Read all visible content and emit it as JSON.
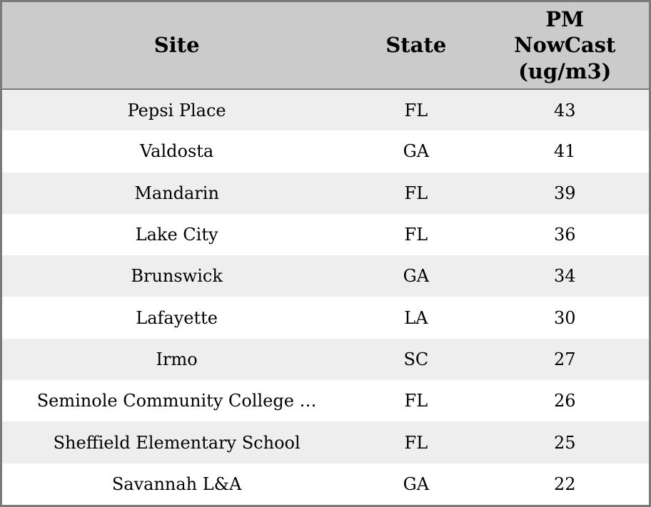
{
  "chart_data": {
    "type": "table",
    "columns": [
      "Site",
      "State",
      "PM NowCast (ug/m3)"
    ],
    "header_display": [
      "Site",
      "State",
      "PM\nNowCast\n(ug/m3)"
    ],
    "rows": [
      [
        "Pepsi Place",
        "FL",
        43
      ],
      [
        "Valdosta",
        "GA",
        41
      ],
      [
        "Mandarin",
        "FL",
        39
      ],
      [
        "Lake City",
        "FL",
        36
      ],
      [
        "Brunswick",
        "GA",
        34
      ],
      [
        "Lafayette",
        "LA",
        30
      ],
      [
        "Irmo",
        "SC",
        27
      ],
      [
        "Seminole Community College …",
        "FL",
        26
      ],
      [
        "Sheffield Elementary School",
        "FL",
        25
      ],
      [
        "Savannah L&A",
        "GA",
        22
      ]
    ],
    "value_unit": "ug/m3",
    "title": ""
  },
  "colors": {
    "header_bg": "#cbcbcb",
    "row_stripe_bg": "#eeeeee",
    "row_plain_bg": "#ffffff",
    "border": "#7a7a7a",
    "text": "#000000"
  }
}
